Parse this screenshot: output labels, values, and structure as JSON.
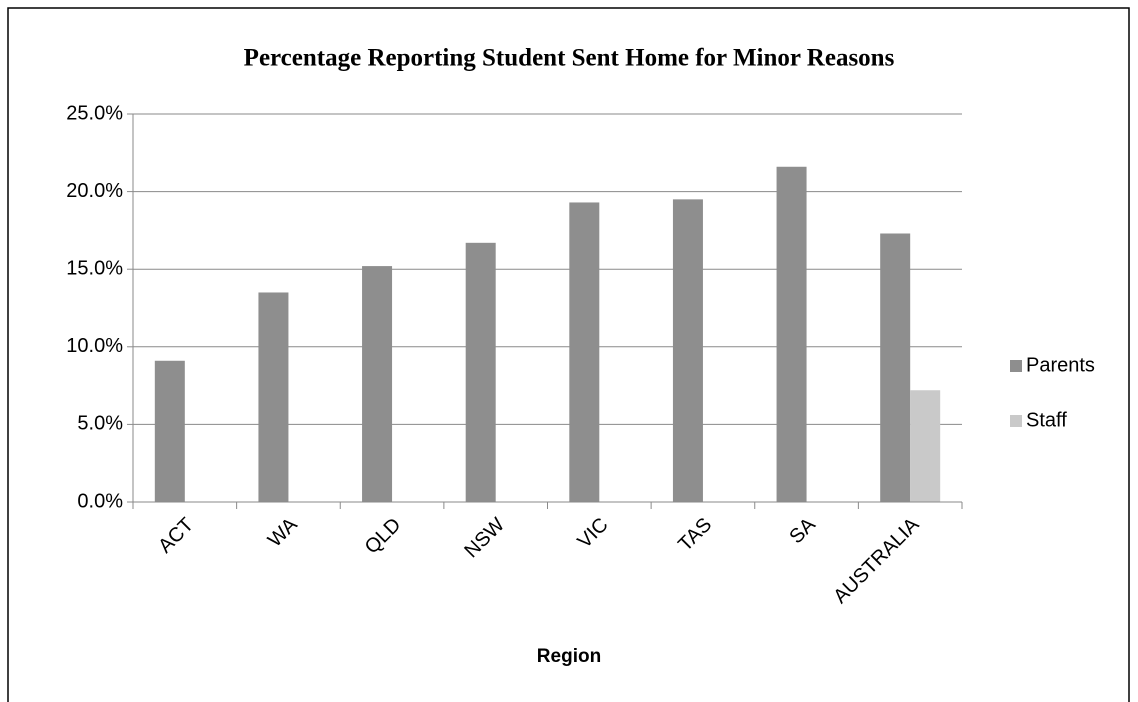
{
  "chart_data": {
    "type": "bar",
    "title": "Percentage Reporting Student Sent Home for Minor Reasons",
    "x_label": "Region",
    "categories": [
      "ACT",
      "WA",
      "QLD",
      "NSW",
      "VIC",
      "TAS",
      "SA",
      "AUSTRALIA"
    ],
    "series": [
      {
        "name": "Parents",
        "color": "#8e8e8e",
        "values": [
          9.1,
          13.5,
          15.2,
          16.7,
          19.3,
          19.5,
          21.6,
          17.3
        ]
      },
      {
        "name": "Staff",
        "color": "#c9c9c9",
        "values": [
          null,
          null,
          null,
          null,
          null,
          null,
          null,
          7.2
        ]
      }
    ],
    "ylim": [
      0,
      25
    ],
    "yticks": [
      {
        "value": 0,
        "label": "0.0%"
      },
      {
        "value": 5,
        "label": "5.0%"
      },
      {
        "value": 10,
        "label": "10.0%"
      },
      {
        "value": 15,
        "label": "15.0%"
      },
      {
        "value": 20,
        "label": "20.0%"
      },
      {
        "value": 25,
        "label": "25.0%"
      }
    ],
    "grid": true,
    "legend": "right"
  }
}
